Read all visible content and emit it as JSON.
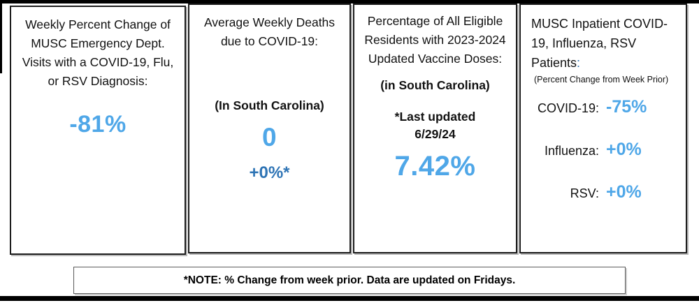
{
  "colors": {
    "accent_light_blue": "#4FA7E8",
    "accent_dark_blue": "#2E74B5",
    "text_black": "#111111"
  },
  "panels": {
    "ed_visits": {
      "title": "Weekly Percent Change of MUSC Emergency Dept. Visits with a COVID-19, Flu, or RSV Diagnosis:",
      "value": "-81%"
    },
    "deaths": {
      "title": "Average Weekly Deaths due to COVID-19:",
      "region": "(In South Carolina)",
      "value": "0",
      "change": "+0%*"
    },
    "vaccine": {
      "title": "Percentage of All Eligible Residents with 2023-2024 Updated Vaccine Doses:",
      "region": "(in South Carolina)",
      "updated_label": "*Last updated",
      "updated_date": "6/29/24",
      "value": "7.42%"
    },
    "inpatient": {
      "title": "MUSC Inpatient COVID-19, Influenza, RSV Patients",
      "title_colon": ":",
      "subtitle": "(Percent Change from Week Prior)",
      "rows": [
        {
          "label": "COVID-19:",
          "value": "-75%"
        },
        {
          "label": "Influenza:",
          "value": "+0%"
        },
        {
          "label": "RSV:",
          "value": "+0%"
        }
      ]
    }
  },
  "footnote": "*NOTE: % Change from week prior. Data are updated on Fridays."
}
